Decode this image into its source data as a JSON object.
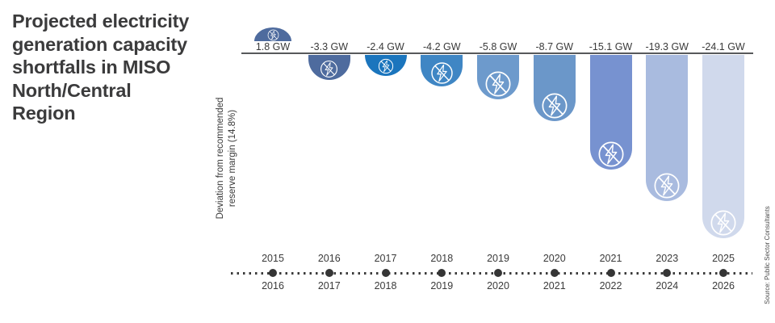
{
  "title": "Projected electricity\ngeneration capacity\nshortfalls in MISO\nNorth/Central\nRegion",
  "y_axis_label": "Deviation from recommended\nreserve margin (14.8%)",
  "source": "Source: Public Sector Consultants",
  "colors": {
    "background": "#ffffff",
    "baseline": "#57595b",
    "axis_dots": "#353535",
    "text": "#3a3a3a",
    "icon_stroke": "#ffffff"
  },
  "chart_data": {
    "type": "bar",
    "title": "Projected electricity generation capacity shortfalls in MISO North/Central Region",
    "xlabel": "",
    "ylabel": "Deviation from recommended reserve margin (14.8%)",
    "unit": "GW",
    "ylim": [
      -26,
      4
    ],
    "grid": false,
    "legend": "none",
    "icon": "no-power-icon",
    "categories": [
      "2015-2016",
      "2016-2017",
      "2017-2018",
      "2018-2019",
      "2019-2020",
      "2020-2021",
      "2021-2022",
      "2023-2024",
      "2025-2026"
    ],
    "points": [
      {
        "period": {
          "start": "2015",
          "end": "2016"
        },
        "value_gw": 1.8,
        "label": "1.8 GW",
        "color": "#4e6b9e"
      },
      {
        "period": {
          "start": "2016",
          "end": "2017"
        },
        "value_gw": -3.3,
        "label": "-3.3 GW",
        "color": "#4e6b9e"
      },
      {
        "period": {
          "start": "2017",
          "end": "2018"
        },
        "value_gw": -2.4,
        "label": "-2.4 GW",
        "color": "#1b75bd"
      },
      {
        "period": {
          "start": "2018",
          "end": "2019"
        },
        "value_gw": -4.2,
        "label": "-4.2 GW",
        "color": "#3f86c4"
      },
      {
        "period": {
          "start": "2019",
          "end": "2020"
        },
        "value_gw": -5.8,
        "label": "-5.8 GW",
        "color": "#6d9acc"
      },
      {
        "period": {
          "start": "2020",
          "end": "2021"
        },
        "value_gw": -8.7,
        "label": "-8.7 GW",
        "color": "#6b97c9"
      },
      {
        "period": {
          "start": "2021",
          "end": "2022"
        },
        "value_gw": -15.1,
        "label": "-15.1 GW",
        "color": "#7792d0"
      },
      {
        "period": {
          "start": "2023",
          "end": "2024"
        },
        "value_gw": -19.3,
        "label": "-19.3 GW",
        "color": "#a9bbdf"
      },
      {
        "period": {
          "start": "2025",
          "end": "2026"
        },
        "value_gw": -24.1,
        "label": "-24.1 GW",
        "color": "#d0d9ec"
      }
    ]
  }
}
